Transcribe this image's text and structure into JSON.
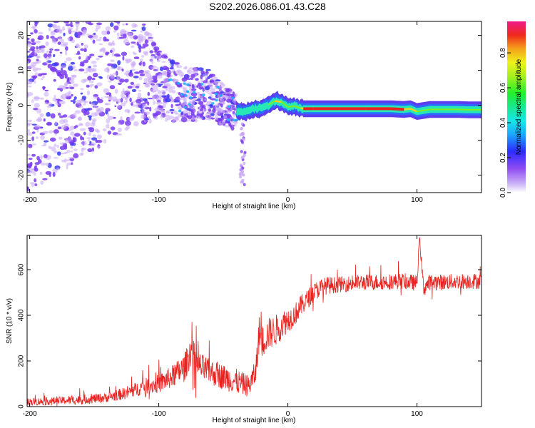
{
  "title": "S202.2026.086.01.43.C28",
  "colors": {
    "snr_line": "#e8221f",
    "spec_base": "#7a3cf0",
    "spec_light": "#c9a8f8",
    "spec_hot": "#e8221f",
    "spec_mid": "#27e7b5"
  },
  "chart_data": [
    {
      "type": "heatmap",
      "title": "",
      "xlabel": "Height of straight line (km)",
      "ylabel": "Frequency (Hz)",
      "xlim": [
        -202,
        150
      ],
      "ylim": [
        -25,
        24
      ],
      "xticks": [
        -200,
        -100,
        0,
        100
      ],
      "xtick_labels": [
        "-200",
        "-100",
        "0",
        "100"
      ],
      "yticks": [
        20,
        10,
        0,
        -10,
        -20
      ],
      "ytick_labels": [
        "20",
        "10",
        "0",
        "-10",
        "-20"
      ],
      "colorbar": {
        "label": "Normalized spectral amplitude",
        "range": [
          0,
          0.98
        ],
        "ticks": [
          0,
          0.2,
          0.4,
          0.6,
          0.8
        ],
        "tick_labels": [
          "0.0",
          "0.2",
          "0.4",
          "0.6",
          "0.8"
        ]
      },
      "ridge": {
        "x": [
          -40,
          -35,
          -30,
          -25,
          -20,
          -15,
          -10,
          -5,
          0,
          5,
          10,
          12,
          20,
          40,
          60,
          80,
          90,
          95,
          100,
          110,
          120,
          130,
          140,
          150
        ],
        "freq": [
          -1.5,
          -2,
          -1.5,
          -1,
          -0.8,
          0.2,
          1.2,
          1.0,
          -0.5,
          -0.2,
          -0.8,
          -1,
          -1,
          -1,
          -1,
          -1,
          -1.2,
          -1,
          -1.8,
          -1.2,
          -1.2,
          -1.2,
          -1.3,
          -1.3
        ],
        "amplitude": [
          0.2,
          0.25,
          0.25,
          0.3,
          0.35,
          0.45,
          0.6,
          0.6,
          0.5,
          0.55,
          0.6,
          0.98,
          0.97,
          0.97,
          0.96,
          0.95,
          0.9,
          0.7,
          0.5,
          0.55,
          0.55,
          0.55,
          0.55,
          0.5
        ]
      },
      "scatter_envelope": {
        "x": [
          -202,
          -150,
          -120,
          -100,
          -80,
          -60,
          -50,
          -40
        ],
        "center_freq": [
          5,
          12,
          12,
          6,
          3,
          3,
          0,
          -2
        ],
        "spread": [
          30,
          25,
          18,
          10,
          8,
          7,
          6,
          5
        ]
      }
    },
    {
      "type": "line",
      "title": "",
      "xlabel": "Height of straight line (km)",
      "ylabel": "SNR (10 * v/v)",
      "xlim": [
        -202,
        150
      ],
      "ylim": [
        0,
        750
      ],
      "xticks": [
        -200,
        -100,
        0,
        100
      ],
      "xtick_labels": [
        "-200",
        "-100",
        "0",
        "100"
      ],
      "yticks": [
        0,
        200,
        400,
        600
      ],
      "ytick_labels": [
        "0",
        "200",
        "400",
        "600"
      ],
      "series": [
        {
          "name": "SNR",
          "x": [
            -202,
            -180,
            -160,
            -140,
            -125,
            -110,
            -100,
            -90,
            -80,
            -75,
            -70,
            -60,
            -50,
            -45,
            -40,
            -35,
            -30,
            -25,
            -22,
            -20,
            -15,
            -10,
            -5,
            0,
            5,
            10,
            15,
            20,
            25,
            30,
            40,
            50,
            60,
            70,
            80,
            90,
            100,
            102,
            105,
            110,
            120,
            130,
            140,
            150
          ],
          "y": [
            20,
            25,
            30,
            40,
            60,
            90,
            100,
            130,
            170,
            250,
            180,
            150,
            130,
            120,
            110,
            100,
            90,
            150,
            330,
            280,
            320,
            330,
            360,
            380,
            400,
            440,
            470,
            500,
            520,
            530,
            535,
            540,
            545,
            545,
            548,
            550,
            540,
            740,
            520,
            545,
            545,
            548,
            550,
            550
          ],
          "noise": [
            12,
            12,
            15,
            15,
            20,
            25,
            30,
            35,
            45,
            50,
            45,
            40,
            40,
            40,
            40,
            35,
            35,
            40,
            60,
            50,
            50,
            50,
            45,
            40,
            35,
            35,
            30,
            30,
            28,
            28,
            25,
            25,
            25,
            25,
            25,
            25,
            25,
            10,
            30,
            25,
            25,
            25,
            25,
            25
          ]
        }
      ]
    }
  ]
}
